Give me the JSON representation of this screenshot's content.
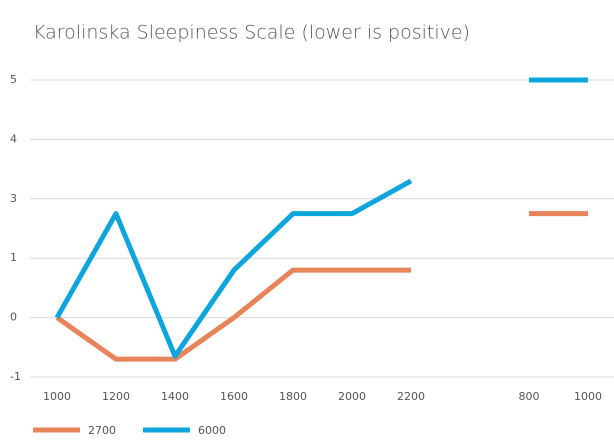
{
  "chart_data": {
    "type": "line",
    "title": "Karolinska Sleepiness Scale (lower is positive)",
    "categories": [
      1000,
      1200,
      1400,
      1600,
      1800,
      2000,
      2200,
      null,
      800,
      1000
    ],
    "series": [
      {
        "name": "2700",
        "color": "#e8845a",
        "values": [
          0,
          -0.7,
          -0.7,
          0,
          0.8,
          0.8,
          0.8,
          null,
          2.5,
          2.5
        ]
      },
      {
        "name": "6000",
        "color": "#0ea5dc",
        "values": [
          0,
          2.5,
          -0.65,
          0.8,
          2.5,
          2.5,
          3.3,
          null,
          5,
          5
        ]
      }
    ],
    "ylim": [
      -1,
      5
    ],
    "yticks": [
      -1,
      0,
      1,
      3,
      4,
      5
    ],
    "grid": true,
    "legend": "bottom"
  }
}
